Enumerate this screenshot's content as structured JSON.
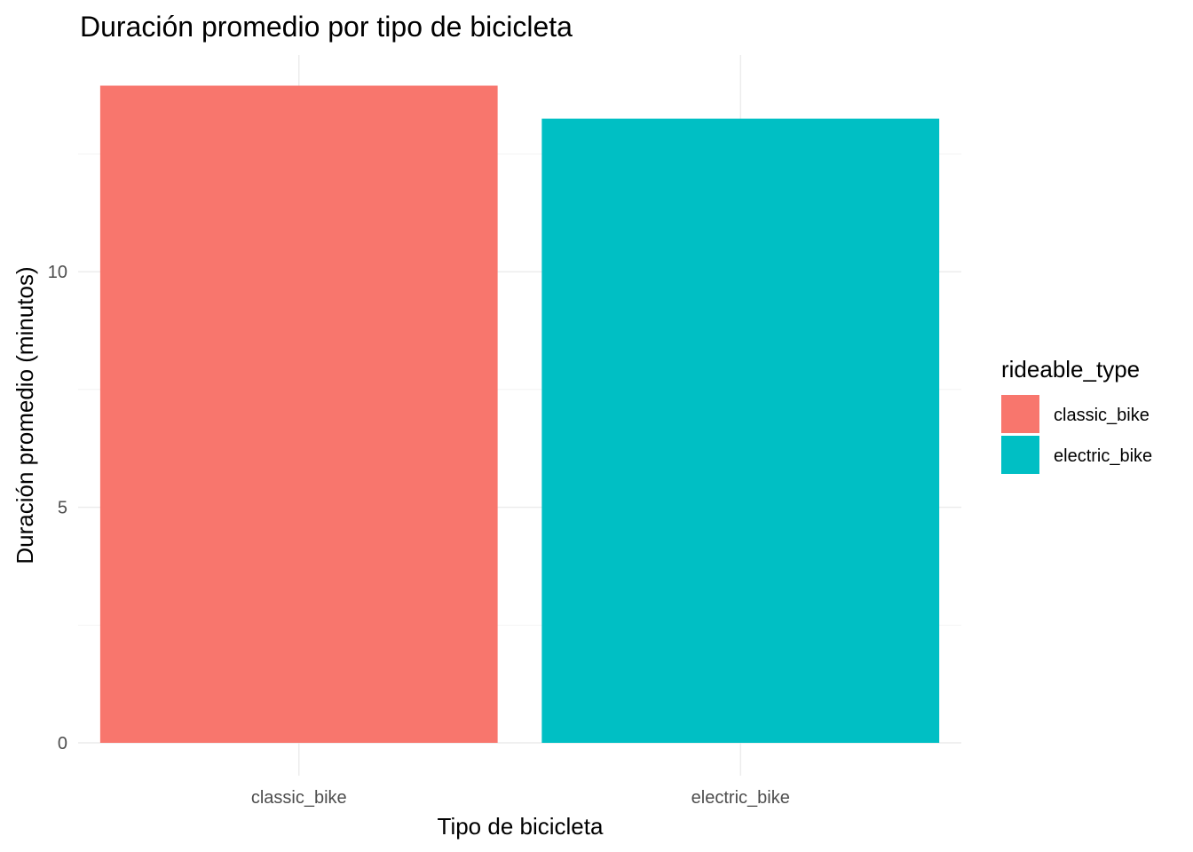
{
  "chart_data": {
    "type": "bar",
    "title": "Duración promedio por tipo de bicicleta",
    "xlabel": "Tipo de bicicleta",
    "ylabel": "Duración promedio (minutos)",
    "categories": [
      "classic_bike",
      "electric_bike"
    ],
    "values": [
      13.95,
      13.25
    ],
    "colors": [
      "#F8766D",
      "#00BFC4"
    ],
    "ylim": [
      0,
      14.6
    ],
    "yticks": [
      0,
      5,
      10
    ],
    "grid": true,
    "legend": {
      "title": "rideable_type",
      "position": "right",
      "entries": [
        {
          "label": "classic_bike",
          "color": "#F8766D"
        },
        {
          "label": "electric_bike",
          "color": "#00BFC4"
        }
      ]
    }
  }
}
